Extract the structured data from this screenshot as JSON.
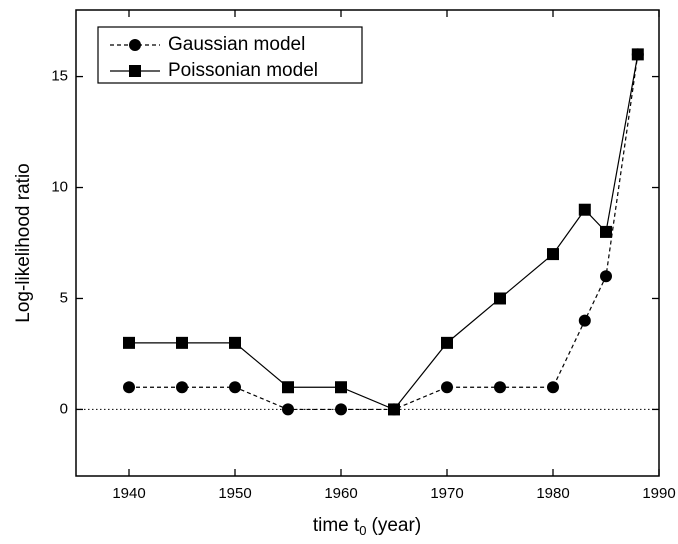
{
  "chart_data": {
    "type": "line",
    "x_label": [
      "time t",
      "0",
      "(year)"
    ],
    "y_label": "Log-likelihood ratio",
    "x": [
      1940,
      1945,
      1950,
      1955,
      1960,
      1965,
      1970,
      1975,
      1980,
      1983,
      1985,
      1988
    ],
    "series": [
      {
        "name": "Gaussian model",
        "color": "#000000",
        "dash": true,
        "marker": "circle",
        "values": [
          1,
          1,
          1,
          0,
          0,
          0,
          1,
          1,
          1,
          4,
          6,
          16
        ]
      },
      {
        "name": "Poissonian model",
        "color": "#000000",
        "dash": false,
        "marker": "square",
        "values": [
          3,
          3,
          3,
          1,
          1,
          0,
          3,
          5,
          7,
          9,
          8,
          16
        ]
      }
    ],
    "xlim": [
      1935,
      1990
    ],
    "ylim": [
      -3,
      18
    ],
    "xticks": [
      1940,
      1950,
      1960,
      1970,
      1980,
      1990
    ],
    "yticks": [
      0,
      5,
      10,
      15
    ],
    "hline": 0,
    "legend": "upper left",
    "grid": false
  }
}
